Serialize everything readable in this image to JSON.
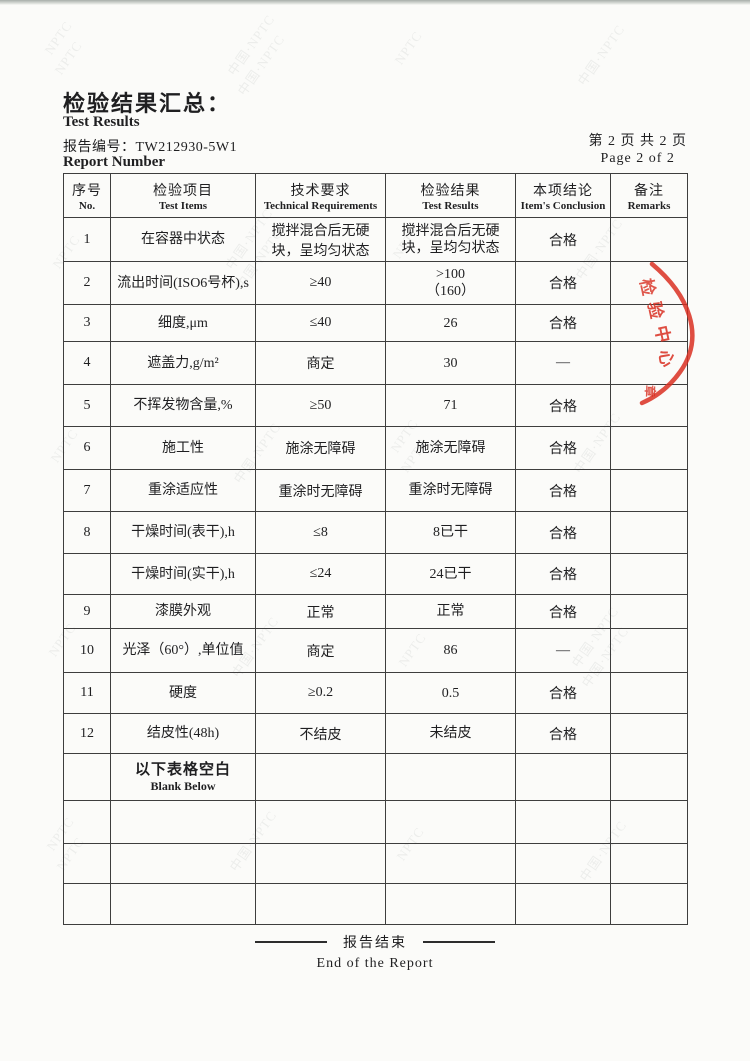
{
  "header": {
    "title_zh": "检验结果汇总：",
    "title_en": "Test Results",
    "report_no_label_zh": "报告编号：",
    "report_no_value": "TW212930-5W1",
    "report_no_label_en": "Report Number",
    "page_zh": "第 2 页 共 2 页",
    "page_en": "Page 2 of  2"
  },
  "table": {
    "columns": [
      {
        "zh": "序号",
        "en": "No."
      },
      {
        "zh": "检验项目",
        "en": "Test Items"
      },
      {
        "zh": "技术要求",
        "en": "Technical Requirements"
      },
      {
        "zh": "检验结果",
        "en": "Test Results"
      },
      {
        "zh": "本项结论",
        "en": "Item's Conclusion"
      },
      {
        "zh": "备注",
        "en": "Remarks"
      }
    ],
    "rows": [
      {
        "no": "1",
        "item": "在容器中状态",
        "req": "搅拌混合后无硬块，呈均匀状态",
        "res": "搅拌混合后无硬块，呈均匀状态",
        "concl": "合格",
        "remark": ""
      },
      {
        "no": "2",
        "item": "流出时间(ISO6号杯),s",
        "req": "≥40",
        "res": ">100\n（160）",
        "concl": "合格",
        "remark": ""
      },
      {
        "no": "3",
        "item": "细度,μm",
        "req": "≤40",
        "res": "26",
        "concl": "合格",
        "remark": ""
      },
      {
        "no": "4",
        "item": "遮盖力,g/m²",
        "req": "商定",
        "res": "30",
        "concl": "—",
        "remark": ""
      },
      {
        "no": "5",
        "item": "不挥发物含量,%",
        "req": "≥50",
        "res": "71",
        "concl": "合格",
        "remark": ""
      },
      {
        "no": "6",
        "item": "施工性",
        "req": "施涂无障碍",
        "res": "施涂无障碍",
        "concl": "合格",
        "remark": ""
      },
      {
        "no": "7",
        "item": "重涂适应性",
        "req": "重涂时无障碍",
        "res": "重涂时无障碍",
        "concl": "合格",
        "remark": ""
      },
      {
        "no": "8",
        "item": "干燥时间(表干),h",
        "req": "≤8",
        "res": "8已干",
        "concl": "合格",
        "remark": ""
      },
      {
        "no": "",
        "item": "干燥时间(实干),h",
        "req": "≤24",
        "res": "24已干",
        "concl": "合格",
        "remark": ""
      },
      {
        "no": "9",
        "item": "漆膜外观",
        "req": "正常",
        "res": "正常",
        "concl": "合格",
        "remark": ""
      },
      {
        "no": "10",
        "item": "光泽（60°）,单位值",
        "req": "商定",
        "res": "86",
        "concl": "—",
        "remark": ""
      },
      {
        "no": "11",
        "item": "硬度",
        "req": "≥0.2",
        "res": "0.5",
        "concl": "合格",
        "remark": ""
      },
      {
        "no": "12",
        "item": "结皮性(48h)",
        "req": "不结皮",
        "res": "未结皮",
        "concl": "合格",
        "remark": ""
      },
      {
        "type": "blank_label",
        "item_zh": "以下表格空白",
        "item_en": "Blank Below"
      },
      {
        "type": "empty"
      },
      {
        "type": "empty"
      },
      {
        "type": "empty"
      }
    ]
  },
  "footer": {
    "end_zh": "报告结束",
    "end_en": "End of the Report"
  },
  "stamp": {
    "chars": [
      "检",
      "验",
      "中",
      "心"
    ],
    "small_char": "章",
    "color": "#d92f22"
  },
  "watermark": {
    "texts": [
      "NPTC",
      "中国·NPTC"
    ]
  }
}
